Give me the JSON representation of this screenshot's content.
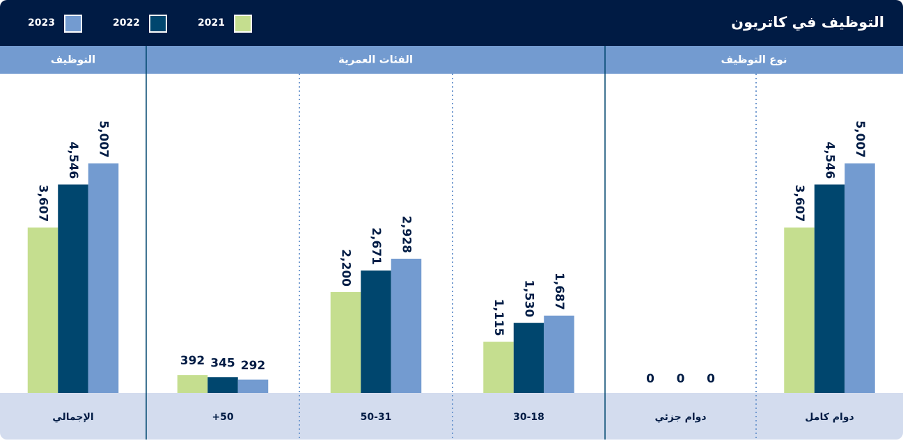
{
  "chart_data": {
    "type": "bar",
    "title": "التوظيف في كاتريون",
    "groups": [
      {
        "name": "نوع التوظيف",
        "categories": [
          "دوام كامل",
          "دوام جزئي"
        ]
      },
      {
        "name": "الفئات العمرية",
        "categories": [
          "30-18",
          "50-31",
          "+50"
        ]
      },
      {
        "name": "التوظيف",
        "categories": [
          "الإجمالي"
        ]
      }
    ],
    "series": [
      {
        "name": "2021",
        "color": "#c5de8f",
        "values": [
          3607,
          0,
          1115,
          2200,
          392,
          3607
        ],
        "value_labels": [
          "3,607",
          "0",
          "1,115",
          "2,200",
          "392",
          "3,607"
        ]
      },
      {
        "name": "2022",
        "color": "#00466e",
        "values": [
          4546,
          0,
          1530,
          2671,
          345,
          4546
        ],
        "value_labels": [
          "4,546",
          "0",
          "1,530",
          "2,671",
          "345",
          "4,546"
        ]
      },
      {
        "name": "2023",
        "color": "#739bd0",
        "values": [
          5007,
          0,
          1687,
          2928,
          292,
          5007
        ],
        "value_labels": [
          "5,007",
          "0",
          "1,687",
          "2,928",
          "292",
          "5,007"
        ]
      }
    ]
  }
}
